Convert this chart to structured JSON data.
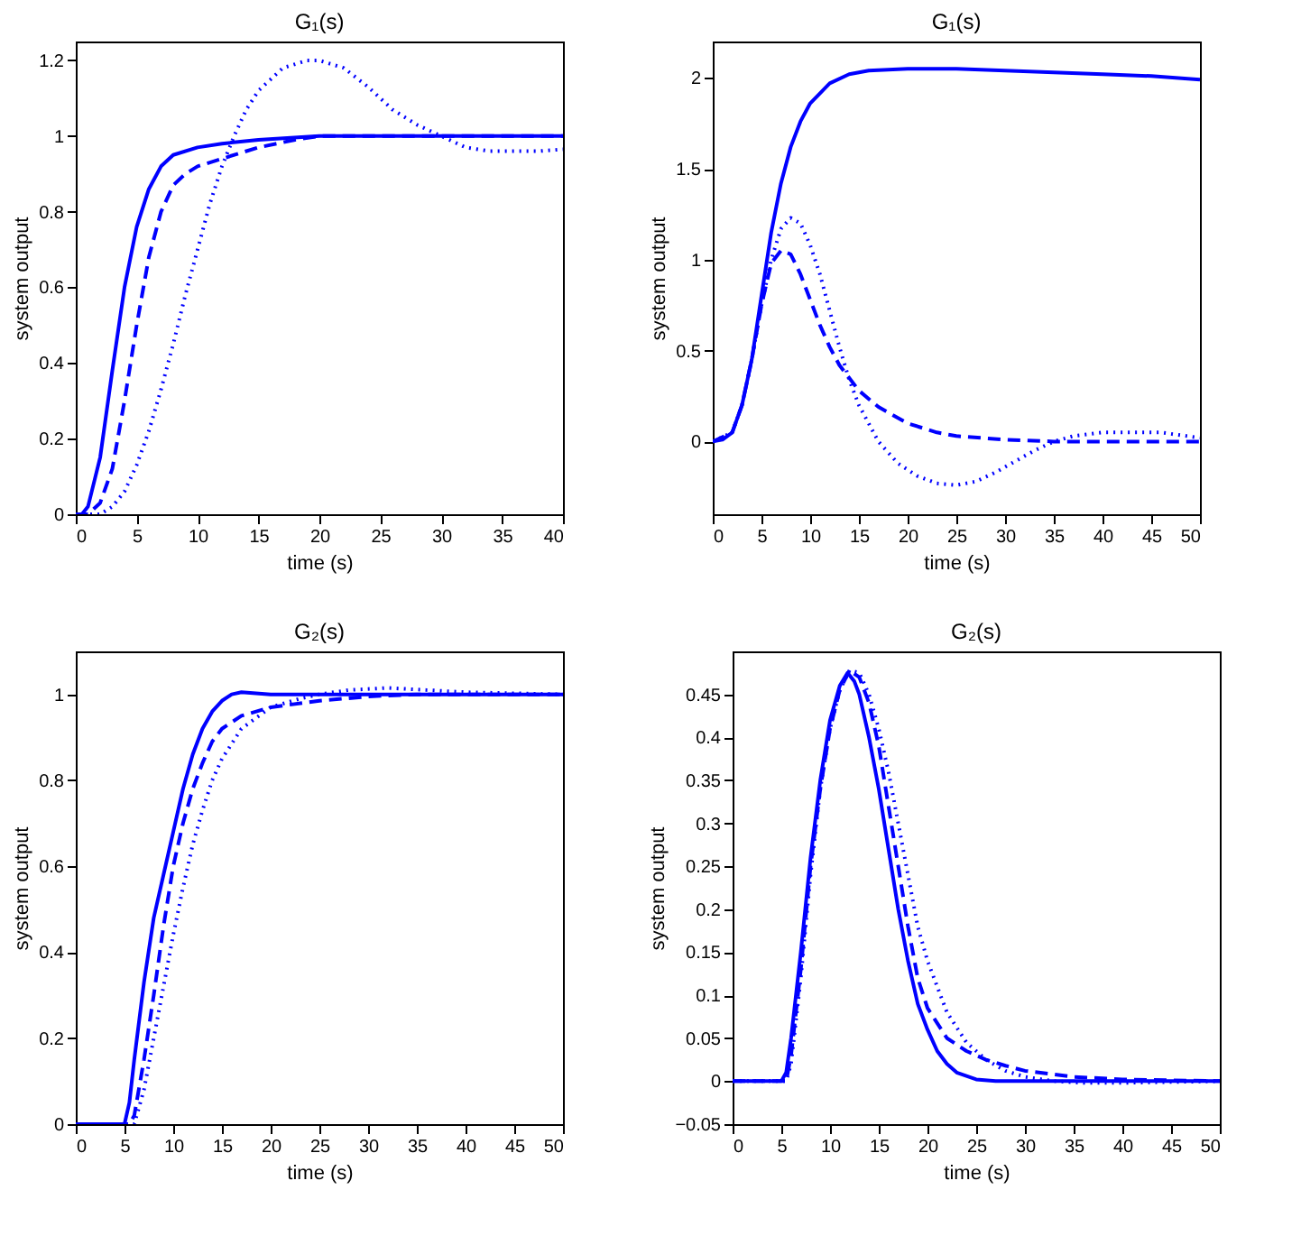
{
  "chart_data": [
    {
      "type": "line",
      "title": "G₁(s)",
      "xlabel": "time (s)",
      "ylabel": "system output",
      "xlim": [
        0,
        40
      ],
      "xticks": [
        0,
        5,
        10,
        15,
        20,
        25,
        30,
        35,
        40
      ],
      "ylim": [
        0,
        1.25
      ],
      "yticks": [
        0,
        0.2,
        0.4,
        0.6,
        0.8,
        1,
        1.2
      ],
      "series": [
        {
          "color": "#0000ff",
          "line_style": "solid",
          "x": [
            0,
            0.5,
            1,
            2,
            3,
            4,
            5,
            6,
            7,
            8,
            10,
            12,
            15,
            20,
            40
          ],
          "values": [
            0,
            0,
            0.02,
            0.15,
            0.38,
            0.6,
            0.76,
            0.86,
            0.92,
            0.95,
            0.97,
            0.98,
            0.99,
            1.0,
            1.0
          ]
        },
        {
          "color": "#0000ff",
          "line_style": "dashed",
          "x": [
            0,
            1,
            2,
            3,
            4,
            5,
            6,
            7,
            8,
            9,
            10,
            12,
            15,
            18,
            20,
            40
          ],
          "values": [
            0,
            0,
            0.03,
            0.12,
            0.3,
            0.5,
            0.68,
            0.8,
            0.87,
            0.9,
            0.92,
            0.94,
            0.97,
            0.99,
            1.0,
            1.0
          ]
        },
        {
          "color": "#0000ff",
          "line_style": "dotted",
          "x": [
            0,
            2,
            3,
            4,
            5,
            6,
            7,
            8,
            9,
            10,
            11,
            12,
            13,
            14,
            15,
            17,
            19,
            20,
            22,
            24,
            26,
            28,
            30,
            32,
            34,
            36,
            38,
            40
          ],
          "values": [
            0,
            0,
            0.02,
            0.06,
            0.13,
            0.22,
            0.33,
            0.45,
            0.58,
            0.7,
            0.82,
            0.92,
            1.0,
            1.07,
            1.12,
            1.18,
            1.2,
            1.2,
            1.18,
            1.13,
            1.07,
            1.03,
            1.0,
            0.97,
            0.96,
            0.96,
            0.96,
            0.965
          ]
        }
      ]
    },
    {
      "type": "line",
      "title": "G₁(s)",
      "xlabel": "time (s)",
      "ylabel": "system output",
      "xlim": [
        0,
        50
      ],
      "xticks": [
        0,
        5,
        10,
        15,
        20,
        25,
        30,
        35,
        40,
        45,
        50
      ],
      "ylim": [
        -0.4,
        2.2
      ],
      "yticks": [
        0,
        0.5,
        1,
        1.5,
        2
      ],
      "series": [
        {
          "color": "#0000ff",
          "line_style": "solid",
          "x": [
            0,
            1,
            2,
            3,
            4,
            5,
            6,
            7,
            8,
            9,
            10,
            12,
            14,
            16,
            20,
            25,
            30,
            35,
            40,
            45,
            50
          ],
          "values": [
            0,
            0.01,
            0.05,
            0.2,
            0.45,
            0.8,
            1.15,
            1.42,
            1.62,
            1.76,
            1.86,
            1.97,
            2.02,
            2.04,
            2.05,
            2.05,
            2.04,
            2.03,
            2.02,
            2.01,
            1.99
          ]
        },
        {
          "color": "#0000ff",
          "line_style": "dashed",
          "x": [
            0,
            2,
            3,
            4,
            5,
            6,
            7,
            8,
            9,
            10,
            11,
            12,
            13,
            15,
            17,
            20,
            23,
            25,
            30,
            35,
            50
          ],
          "values": [
            0,
            0.05,
            0.2,
            0.45,
            0.75,
            0.98,
            1.05,
            1.03,
            0.92,
            0.78,
            0.64,
            0.52,
            0.42,
            0.28,
            0.19,
            0.1,
            0.05,
            0.03,
            0.01,
            0,
            0
          ]
        },
        {
          "color": "#0000ff",
          "line_style": "dotted",
          "x": [
            0,
            2,
            3,
            4,
            5,
            6,
            7,
            8,
            9,
            10,
            11,
            12,
            13,
            14,
            15,
            17,
            19,
            21,
            23,
            25,
            27,
            29,
            31,
            33,
            35,
            37,
            40,
            43,
            46,
            50
          ],
          "values": [
            0,
            0.05,
            0.2,
            0.45,
            0.75,
            1.0,
            1.17,
            1.23,
            1.2,
            1.08,
            0.92,
            0.72,
            0.52,
            0.34,
            0.2,
            0.0,
            -0.12,
            -0.19,
            -0.23,
            -0.24,
            -0.22,
            -0.17,
            -0.11,
            -0.05,
            0.0,
            0.03,
            0.05,
            0.05,
            0.05,
            0.02
          ]
        }
      ]
    },
    {
      "type": "line",
      "title": "G₂(s)",
      "xlabel": "time (s)",
      "ylabel": "system output",
      "xlim": [
        0,
        50
      ],
      "xticks": [
        0,
        5,
        10,
        15,
        20,
        25,
        30,
        35,
        40,
        45,
        50
      ],
      "ylim": [
        0,
        1.1
      ],
      "yticks": [
        0,
        0.2,
        0.4,
        0.6,
        0.8,
        1
      ],
      "series": [
        {
          "color": "#0000ff",
          "line_style": "solid",
          "x": [
            0,
            5,
            5.5,
            6,
            7,
            8,
            9,
            10,
            11,
            12,
            13,
            14,
            15,
            16,
            17,
            20,
            50
          ],
          "values": [
            0,
            0,
            0.05,
            0.15,
            0.33,
            0.48,
            0.58,
            0.68,
            0.78,
            0.86,
            0.92,
            0.96,
            0.985,
            1.0,
            1.005,
            1.0,
            1.0
          ]
        },
        {
          "color": "#0000ff",
          "line_style": "dashed",
          "x": [
            0,
            5.5,
            6,
            7,
            8,
            9,
            10,
            11,
            12,
            13,
            14,
            15,
            17,
            20,
            25,
            30,
            35,
            50
          ],
          "values": [
            0,
            0,
            0.02,
            0.15,
            0.3,
            0.46,
            0.6,
            0.7,
            0.78,
            0.84,
            0.89,
            0.92,
            0.95,
            0.97,
            0.985,
            0.995,
            1.0,
            1.0
          ]
        },
        {
          "color": "#0000ff",
          "line_style": "dotted",
          "x": [
            0,
            6,
            7,
            8,
            9,
            10,
            11,
            12,
            13,
            14,
            15,
            17,
            20,
            23,
            25,
            28,
            32,
            36,
            40,
            50
          ],
          "values": [
            0,
            0,
            0.08,
            0.2,
            0.32,
            0.44,
            0.55,
            0.65,
            0.73,
            0.8,
            0.85,
            0.92,
            0.97,
            0.99,
            1.0,
            1.01,
            1.015,
            1.01,
            1.005,
            1.0
          ]
        }
      ]
    },
    {
      "type": "line",
      "title": "G₂(s)",
      "xlabel": "time (s)",
      "ylabel": "system output",
      "xlim": [
        0,
        50
      ],
      "xticks": [
        0,
        5,
        10,
        15,
        20,
        25,
        30,
        35,
        40,
        45,
        50
      ],
      "ylim": [
        -0.05,
        0.5
      ],
      "yticks": [
        {
          "value": -0.05,
          "label": "−0.05"
        },
        0,
        0.05,
        0.1,
        0.15,
        0.2,
        0.25,
        0.3,
        0.35,
        0.4,
        0.45
      ],
      "series": [
        {
          "color": "#0000ff",
          "line_style": "solid",
          "x": [
            0,
            5,
            5.5,
            6,
            7,
            8,
            9,
            10,
            11,
            11.8,
            12.5,
            13,
            14,
            15,
            16,
            17,
            18,
            19,
            20,
            21,
            22,
            23,
            25,
            27,
            50
          ],
          "values": [
            0,
            0,
            0.01,
            0.05,
            0.15,
            0.26,
            0.35,
            0.42,
            0.46,
            0.475,
            0.465,
            0.45,
            0.4,
            0.34,
            0.27,
            0.2,
            0.14,
            0.09,
            0.06,
            0.035,
            0.02,
            0.01,
            0.002,
            0,
            0
          ]
        },
        {
          "color": "#0000ff",
          "line_style": "dashed",
          "x": [
            0,
            5.5,
            6,
            7,
            8,
            9,
            10,
            11,
            12,
            13,
            14,
            15,
            16,
            17,
            18,
            19,
            20,
            22,
            24,
            26,
            28,
            30,
            35,
            40,
            50
          ],
          "values": [
            0,
            0,
            0.03,
            0.13,
            0.25,
            0.34,
            0.41,
            0.455,
            0.478,
            0.47,
            0.44,
            0.39,
            0.32,
            0.25,
            0.18,
            0.12,
            0.085,
            0.05,
            0.035,
            0.025,
            0.018,
            0.012,
            0.005,
            0.002,
            0
          ]
        },
        {
          "color": "#0000ff",
          "line_style": "dotted",
          "x": [
            0,
            5.5,
            6,
            7,
            8,
            9,
            10,
            11,
            12,
            13,
            14,
            15,
            16,
            17,
            18,
            19,
            20,
            22,
            24,
            26,
            28,
            30,
            33,
            36,
            40,
            50
          ],
          "values": [
            0,
            0,
            0.02,
            0.12,
            0.24,
            0.34,
            0.41,
            0.455,
            0.478,
            0.475,
            0.45,
            0.41,
            0.36,
            0.3,
            0.24,
            0.18,
            0.14,
            0.08,
            0.045,
            0.025,
            0.012,
            0.005,
            0,
            -0.002,
            -0.002,
            0
          ]
        }
      ]
    }
  ]
}
